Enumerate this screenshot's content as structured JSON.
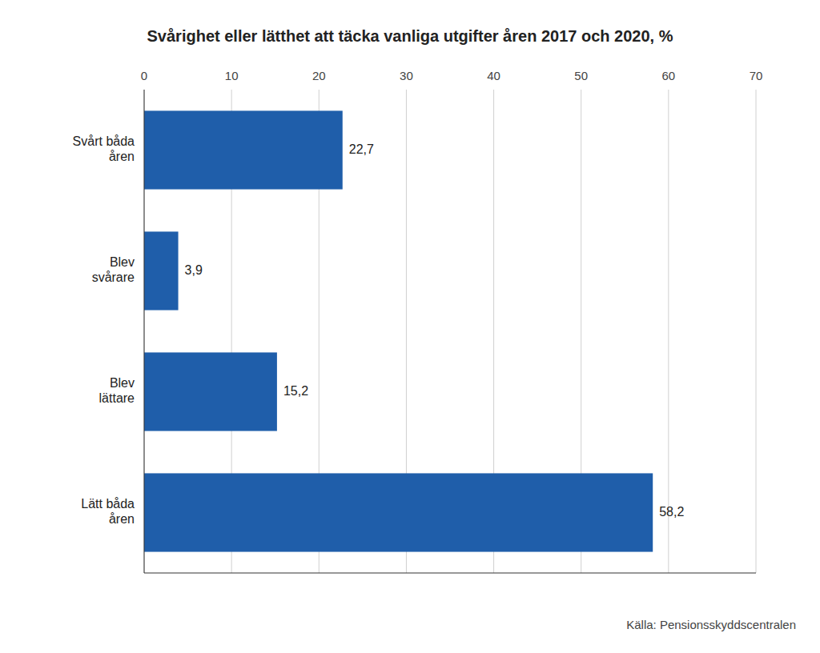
{
  "chart_data": {
    "type": "bar",
    "orientation": "horizontal",
    "title": "Svårighet eller lätthet att täcka vanliga utgifter åren 2017 och 2020, %",
    "categories": [
      "Svårt båda\nåren",
      "Blev\nsvårare",
      "Blev\nlättare",
      "Lätt båda\nåren"
    ],
    "values": [
      22.7,
      3.9,
      15.2,
      58.2
    ],
    "value_labels": [
      "22,7",
      "3,9",
      "15,2",
      "58,2"
    ],
    "data_labels": true,
    "color": "#1F5EAA",
    "xlim": [
      0,
      70
    ],
    "xticks": [
      0,
      10,
      20,
      30,
      40,
      50,
      60,
      70
    ],
    "grid": true,
    "annotations": [
      "Källa: Pensionsskyddscentralen"
    ]
  }
}
